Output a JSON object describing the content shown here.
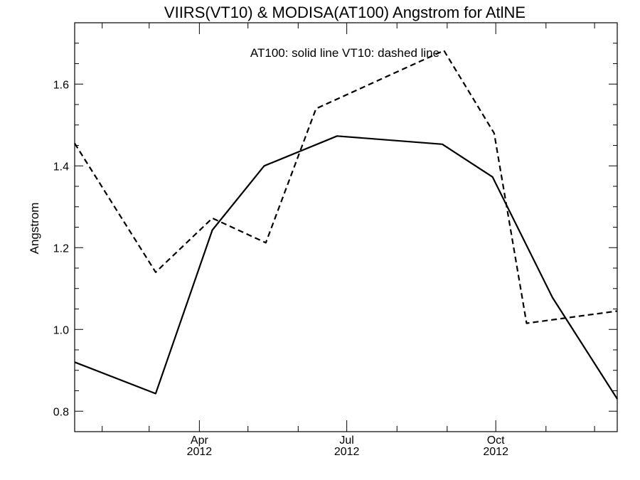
{
  "chart_data": {
    "type": "line",
    "title": "VIIRS(VT10) & MODISA(AT100)  Angstrom for AtlNE",
    "annotation": "AT100: solid line   VT10: dashed line",
    "xlabel": "",
    "ylabel": "Angstrom",
    "xlim": [
      "2012-01-15",
      "2012-12-15"
    ],
    "ylim": [
      0.75,
      1.75
    ],
    "y_ticks": [
      {
        "value": 0.8,
        "label": "0.8"
      },
      {
        "value": 1.0,
        "label": "1.0"
      },
      {
        "value": 1.2,
        "label": "1.2"
      },
      {
        "value": 1.4,
        "label": "1.4"
      },
      {
        "value": 1.6,
        "label": "1.6"
      }
    ],
    "x_major_ticks": [
      {
        "date": "2012-04-01",
        "month": "Apr",
        "year": "2012"
      },
      {
        "date": "2012-07-01",
        "month": "Jul",
        "year": "2012"
      },
      {
        "date": "2012-10-01",
        "month": "Oct",
        "year": "2012"
      }
    ],
    "x_minor_ticks": [
      "2012-02-01",
      "2012-03-01",
      "2012-05-01",
      "2012-06-01",
      "2012-08-01",
      "2012-09-01",
      "2012-11-01",
      "2012-12-01"
    ],
    "grid": false,
    "series": [
      {
        "name": "AT100",
        "style": "solid",
        "color": "#000000",
        "points": [
          {
            "x": "2012-01-15",
            "y": 0.92
          },
          {
            "x": "2012-03-05",
            "y": 0.843
          },
          {
            "x": "2012-04-09",
            "y": 1.243
          },
          {
            "x": "2012-05-11",
            "y": 1.4
          },
          {
            "x": "2012-06-25",
            "y": 1.473
          },
          {
            "x": "2012-08-29",
            "y": 1.453
          },
          {
            "x": "2012-09-29",
            "y": 1.373
          },
          {
            "x": "2012-11-05",
            "y": 1.078
          },
          {
            "x": "2012-12-15",
            "y": 0.83
          }
        ]
      },
      {
        "name": "VT10",
        "style": "dashed",
        "color": "#000000",
        "points": [
          {
            "x": "2012-01-15",
            "y": 1.455
          },
          {
            "x": "2012-03-05",
            "y": 1.14
          },
          {
            "x": "2012-04-09",
            "y": 1.272
          },
          {
            "x": "2012-05-12",
            "y": 1.212
          },
          {
            "x": "2012-06-12",
            "y": 1.54
          },
          {
            "x": "2012-08-30",
            "y": 1.682
          },
          {
            "x": "2012-09-30",
            "y": 1.48
          },
          {
            "x": "2012-10-20",
            "y": 1.015
          },
          {
            "x": "2012-12-15",
            "y": 1.045
          }
        ]
      }
    ]
  }
}
